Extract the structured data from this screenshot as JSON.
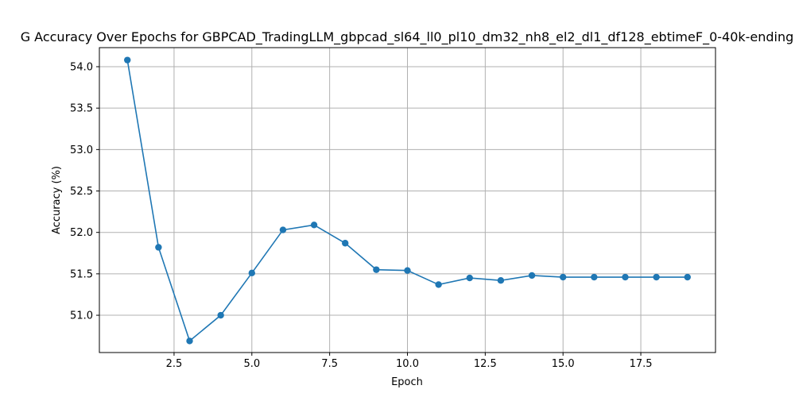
{
  "chart_data": {
    "type": "line",
    "title": "G Accuracy Over Epochs for GBPCAD_TradingLLM_gbpcad_sl64_ll0_pl10_dm32_nh8_el2_dl1_df128_ebtimeF_0-40k-ending",
    "xlabel": "Epoch",
    "ylabel": "Accuracy (%)",
    "xlim": [
      0.1,
      19.9
    ],
    "ylim": [
      50.55,
      54.23
    ],
    "xticks": [
      2.5,
      5.0,
      7.5,
      10.0,
      12.5,
      15.0,
      17.5
    ],
    "xtick_labels": [
      "2.5",
      "5.0",
      "7.5",
      "10.0",
      "12.5",
      "15.0",
      "17.5"
    ],
    "yticks": [
      51.0,
      51.5,
      52.0,
      52.5,
      53.0,
      53.5,
      54.0
    ],
    "ytick_labels": [
      "51.0",
      "51.5",
      "52.0",
      "52.5",
      "53.0",
      "53.5",
      "54.0"
    ],
    "grid": true,
    "series": [
      {
        "color": "#1f77b4",
        "x": [
          1,
          2,
          3,
          4,
          5,
          6,
          7,
          8,
          9,
          10,
          11,
          12,
          13,
          14,
          15,
          16,
          17,
          18,
          19
        ],
        "y": [
          54.08,
          51.82,
          50.69,
          51.0,
          51.51,
          52.03,
          52.09,
          51.87,
          51.55,
          51.54,
          51.37,
          51.45,
          51.42,
          51.48,
          51.46,
          51.46,
          51.46,
          51.46,
          51.46
        ]
      }
    ]
  }
}
